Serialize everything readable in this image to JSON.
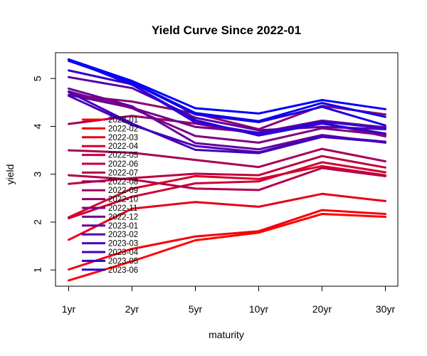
{
  "chart_data": {
    "type": "line",
    "title": "Yield Curve Since 2022-01",
    "xlabel": "maturity",
    "ylabel": "yield",
    "categories": [
      "1yr",
      "2yr",
      "5yr",
      "10yr",
      "20yr",
      "30yr"
    ],
    "yticks": [
      1,
      2,
      3,
      4,
      5
    ],
    "ylim": [
      0.66,
      5.54
    ],
    "legend_position": "left-inside",
    "grid": false,
    "series": [
      {
        "name": "2022-01",
        "color": "#FF0000",
        "values": [
          0.78,
          1.18,
          1.62,
          1.78,
          2.17,
          2.11
        ]
      },
      {
        "name": "2022-02",
        "color": "#F2000D",
        "values": [
          1.01,
          1.44,
          1.7,
          1.81,
          2.25,
          2.17
        ]
      },
      {
        "name": "2022-03",
        "color": "#E5001A",
        "values": [
          1.63,
          2.28,
          2.42,
          2.32,
          2.59,
          2.44
        ]
      },
      {
        "name": "2022-04",
        "color": "#D90026",
        "values": [
          2.1,
          2.7,
          2.96,
          2.9,
          3.17,
          2.98
        ]
      },
      {
        "name": "2022-05",
        "color": "#CC0033",
        "values": [
          2.08,
          2.53,
          2.81,
          2.85,
          3.25,
          3.04
        ]
      },
      {
        "name": "2022-06",
        "color": "#BF0040",
        "values": [
          2.8,
          2.92,
          3.01,
          2.98,
          3.38,
          3.14
        ]
      },
      {
        "name": "2022-07",
        "color": "#B3004C",
        "values": [
          2.98,
          2.89,
          2.7,
          2.67,
          3.13,
          2.96
        ]
      },
      {
        "name": "2022-08",
        "color": "#A60059",
        "values": [
          3.5,
          3.45,
          3.3,
          3.15,
          3.53,
          3.27
        ]
      },
      {
        "name": "2022-09",
        "color": "#990066",
        "values": [
          4.05,
          4.22,
          4.06,
          3.83,
          4.08,
          3.79
        ]
      },
      {
        "name": "2022-10",
        "color": "#8C0073",
        "values": [
          4.66,
          4.52,
          4.27,
          3.94,
          4.43,
          4.25
        ]
      },
      {
        "name": "2022-11",
        "color": "#80007F",
        "values": [
          4.73,
          4.38,
          3.8,
          3.66,
          3.96,
          3.82
        ]
      },
      {
        "name": "2022-12",
        "color": "#73008C",
        "values": [
          4.66,
          4.39,
          3.99,
          3.87,
          4.12,
          3.98
        ]
      },
      {
        "name": "2023-01",
        "color": "#660099",
        "values": [
          4.79,
          4.42,
          3.65,
          3.52,
          3.82,
          3.66
        ]
      },
      {
        "name": "2023-02",
        "color": "#5900A6",
        "values": [
          5.03,
          4.8,
          4.18,
          3.92,
          3.99,
          3.94
        ]
      },
      {
        "name": "2023-03",
        "color": "#4C00B3",
        "values": [
          4.64,
          4.03,
          3.59,
          3.46,
          3.8,
          3.68
        ]
      },
      {
        "name": "2023-04",
        "color": "#4000BF",
        "values": [
          4.72,
          4.06,
          3.51,
          3.44,
          3.78,
          3.67
        ]
      },
      {
        "name": "2023-05",
        "color": "#3300CC",
        "values": [
          5.17,
          4.88,
          4.08,
          3.86,
          4.1,
          3.96
        ]
      },
      {
        "name": "2023-06",
        "color": "#2600D9",
        "values": [
          5.4,
          4.87,
          4.13,
          3.81,
          4.06,
          3.85
        ]
      },
      {
        "name": "",
        "color": "#1A00E5",
        "values": [
          5.37,
          4.91,
          4.25,
          4.09,
          4.41,
          4.02
        ]
      },
      {
        "name": "",
        "color": "#0D00F2",
        "values": [
          5.38,
          4.92,
          4.28,
          4.11,
          4.49,
          4.2
        ]
      },
      {
        "name": "",
        "color": "#0000FF",
        "values": [
          5.4,
          4.95,
          4.38,
          4.27,
          4.55,
          4.36
        ]
      }
    ]
  }
}
